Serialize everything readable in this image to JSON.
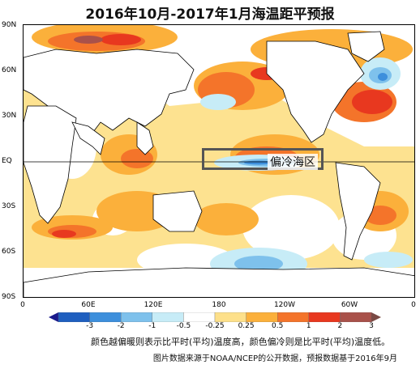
{
  "title": "2016年10月-2017年1月海温距平预报",
  "lat_labels": [
    "90N",
    "60N",
    "30N",
    "EQ",
    "30S",
    "60S",
    "90S"
  ],
  "lon_labels": [
    "0",
    "60E",
    "120E",
    "180",
    "120W",
    "60W",
    "0"
  ],
  "annotation": "偏冷海区",
  "colorbar": {
    "ticks": [
      "-3",
      "-2",
      "-1",
      "-0.5",
      "-0.25",
      "0.25",
      "0.5",
      "1",
      "2",
      "3"
    ],
    "colors": [
      "#1a1a8c",
      "#1f5fbf",
      "#3d8fdc",
      "#7ec1ec",
      "#c7ecf7",
      "#ffffff",
      "#fde08a",
      "#fbb03b",
      "#f4742a",
      "#e8381f",
      "#a9514a",
      "#7a4a45"
    ]
  },
  "caption_line1": "颜色越偏暖则表示比平时(平均)温度高，颜色偏冷则是比平时(平均)温度低。",
  "caption_line2": "图片数据来源于NOAA/NCEP的公开数据，预报数据基于2016年9月"
}
